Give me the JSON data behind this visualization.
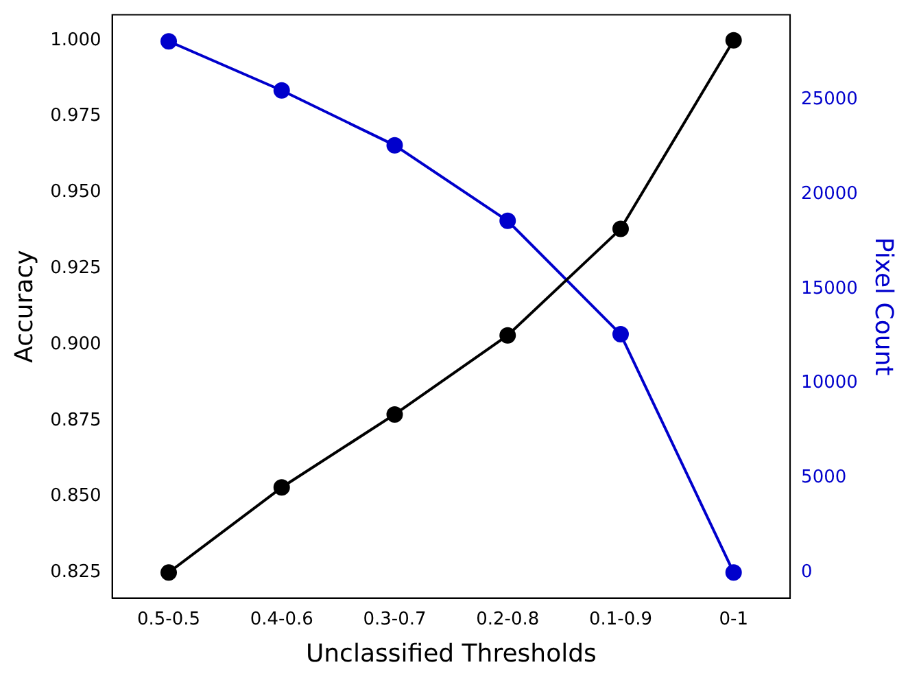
{
  "chart_data": {
    "type": "line",
    "xlabel": "Unclassified Thresholds",
    "ylabel": "Accuracy",
    "y2label": "Pixel Count",
    "categories": [
      "0.5-0.5",
      "0.4-0.6",
      "0.3-0.7",
      "0.2-0.8",
      "0.1-0.9",
      "0-1"
    ],
    "series": [
      {
        "color": "#000000",
        "values": [
          0.825,
          0.853,
          0.877,
          0.903,
          0.938,
          1.0
        ]
      },
      {
        "color": "#0000cc",
        "axis": "y2",
        "values": [
          28100,
          25500,
          22600,
          18600,
          12600,
          0
        ]
      }
    ],
    "ylim": [
      0.8166,
      1.0084
    ],
    "yticks": [
      {
        "value": 0.825,
        "label": "0.825"
      },
      {
        "value": 0.85,
        "label": "0.850"
      },
      {
        "value": 0.875,
        "label": "0.875"
      },
      {
        "value": 0.9,
        "label": "0.900"
      },
      {
        "value": 0.925,
        "label": "0.925"
      },
      {
        "value": 0.95,
        "label": "0.950"
      },
      {
        "value": 0.975,
        "label": "0.975"
      },
      {
        "value": 1,
        "label": "1.000"
      }
    ],
    "y2lim": [
      -1360,
      29500
    ],
    "y2ticks": [
      0,
      5000,
      10000,
      15000,
      20000,
      25000
    ],
    "grid": false,
    "legend": false,
    "marker": "circle",
    "line_style": "solid"
  }
}
